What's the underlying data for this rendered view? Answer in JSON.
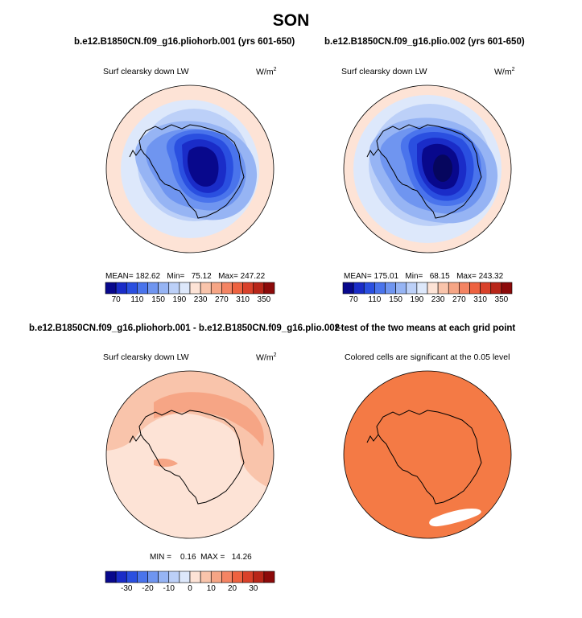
{
  "title": "SON",
  "panels": [
    {
      "title": "b.e12.B1850CN.f09_g16.pliohorb.001 (yrs 601-650)",
      "left_label": "Surf clearsky down LW",
      "units": "W/m",
      "units_exp": "2",
      "stats": "MEAN= 182.62   Min=   75.12   Max= 247.22"
    },
    {
      "title": "b.e12.B1850CN.f09_g16.plio.002 (yrs 601-650)",
      "left_label": "Surf clearsky down LW",
      "units": "W/m",
      "units_exp": "2",
      "stats": "MEAN= 175.01   Min=   68.15   Max= 243.32"
    },
    {
      "title": "b.e12.B1850CN.f09_g16.pliohorb.001 - b.e12.B1850CN.f09_g16.plio.002",
      "left_label": "Surf clearsky down LW",
      "units": "W/m",
      "units_exp": "2",
      "stats": "MIN =    0.16  MAX =   14.26"
    },
    {
      "title": "t-test of the two means at each grid point",
      "center_label": "Colored cells are significant at the 0.05 level"
    }
  ],
  "colorbars": {
    "field": {
      "labels": [
        "70",
        "110",
        "150",
        "190",
        "230",
        "270",
        "310",
        "350"
      ],
      "colors": [
        "#08088c",
        "#1a2cc8",
        "#2a4fe0",
        "#4a74ec",
        "#6f95f0",
        "#96b4f4",
        "#bcd0f8",
        "#dde8fb",
        "#fde3d6",
        "#f9c4ab",
        "#f6a585",
        "#f48463",
        "#ee6240",
        "#d9412a",
        "#b82619",
        "#8c0a0a"
      ]
    },
    "diff": {
      "labels": [
        "-30",
        "-20",
        "-10",
        "0",
        "10",
        "20",
        "30"
      ],
      "colors": [
        "#08088c",
        "#1a2cc8",
        "#2a4fe0",
        "#4a74ec",
        "#6f95f0",
        "#96b4f4",
        "#bcd0f8",
        "#dde8fb",
        "#fde3d6",
        "#f9c4ab",
        "#f6a585",
        "#f48463",
        "#ee6240",
        "#d9412a",
        "#b82619",
        "#8c0a0a"
      ]
    }
  },
  "chart_data": [
    {
      "type": "heatmap",
      "projection": "south-polar-stereographic",
      "title": "b.e12.B1850CN.f09_g16.pliohorb.001 (yrs 601-650)",
      "variable": "Surf clearsky down LW",
      "units": "W/m2",
      "mean": 182.62,
      "min": 75.12,
      "max": 247.22,
      "colorbar_levels": [
        70,
        110,
        150,
        190,
        230,
        270,
        310,
        350
      ]
    },
    {
      "type": "heatmap",
      "projection": "south-polar-stereographic",
      "title": "b.e12.B1850CN.f09_g16.plio.002 (yrs 601-650)",
      "variable": "Surf clearsky down LW",
      "units": "W/m2",
      "mean": 175.01,
      "min": 68.15,
      "max": 243.32,
      "colorbar_levels": [
        70,
        110,
        150,
        190,
        230,
        270,
        310,
        350
      ]
    },
    {
      "type": "heatmap",
      "projection": "south-polar-stereographic",
      "title": "b.e12.B1850CN.f09_g16.pliohorb.001 - b.e12.B1850CN.f09_g16.plio.002",
      "variable": "Surf clearsky down LW",
      "units": "W/m2",
      "min": 0.16,
      "max": 14.26,
      "colorbar_levels": [
        -30,
        -20,
        -10,
        0,
        10,
        20,
        30
      ]
    },
    {
      "type": "heatmap",
      "projection": "south-polar-stereographic",
      "title": "t-test of the two means at each grid point",
      "note": "Colored cells are significant at the 0.05 level"
    }
  ]
}
